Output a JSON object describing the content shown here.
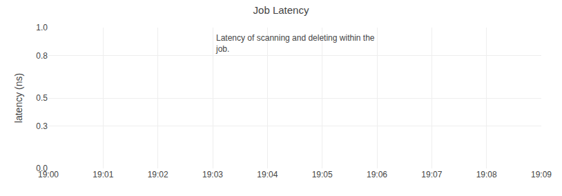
{
  "chart_data": {
    "type": "line",
    "title": "Job Latency",
    "ylabel": "latency (ns)",
    "categories": [
      "19:00",
      "19:01",
      "19:02",
      "19:03",
      "19:04",
      "19:05",
      "19:06",
      "19:07",
      "19:08",
      "19:09"
    ],
    "series": [],
    "ylim": [
      0.0,
      1.0
    ],
    "yticks": [
      {
        "value": 0.0,
        "label": "0.0"
      },
      0.3,
      0.5,
      0.8,
      {
        "value": 1.0,
        "label": "1.0"
      }
    ],
    "grid": true,
    "annotations": [
      "Latency of scanning and deleting within the\njob."
    ]
  }
}
